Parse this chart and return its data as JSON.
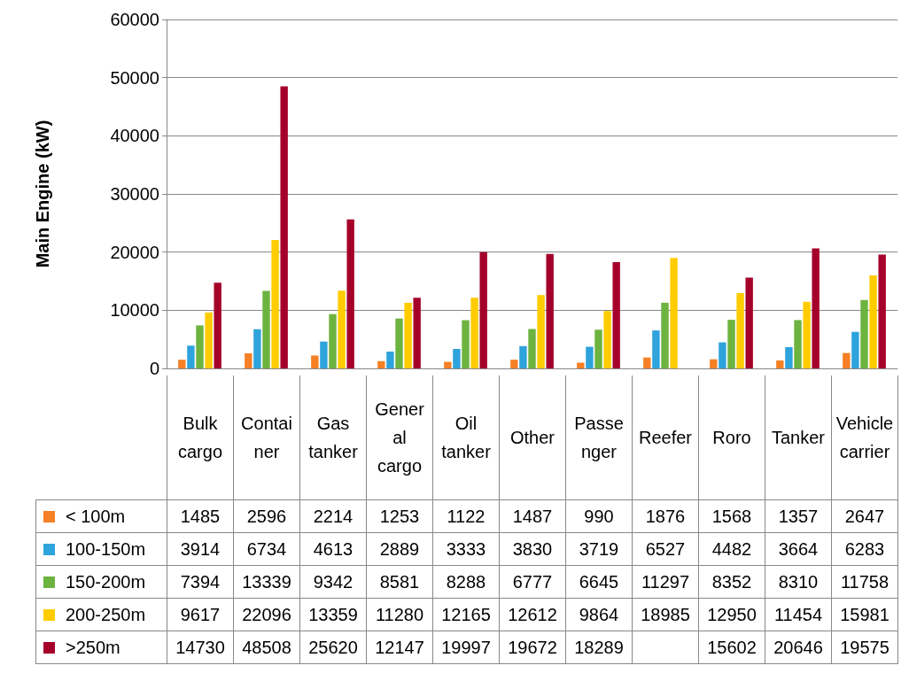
{
  "chart_data": {
    "type": "bar",
    "ylabel": "Main Engine (kW)",
    "categories": [
      "Bulk cargo",
      "Container",
      "Gas tanker",
      "General cargo",
      "Oil tanker",
      "Other",
      "Passenger",
      "Reefer",
      "Roro",
      "Tanker",
      "Vehicle carrier"
    ],
    "series": [
      {
        "name": "< 100m",
        "color": "#f58025",
        "values": [
          1485,
          2596,
          2214,
          1253,
          1122,
          1487,
          990,
          1876,
          1568,
          1357,
          2647
        ]
      },
      {
        "name": "100-150m",
        "color": "#2ea3dc",
        "values": [
          3914,
          6734,
          4613,
          2889,
          3333,
          3830,
          3719,
          6527,
          4482,
          3664,
          6283
        ]
      },
      {
        "name": "150-200m",
        "color": "#6db33f",
        "values": [
          7394,
          13339,
          9342,
          8581,
          8288,
          6777,
          6645,
          11297,
          8352,
          8310,
          11758
        ]
      },
      {
        "name": "200-250m",
        "color": "#ffcc00",
        "values": [
          9617,
          22096,
          13359,
          11280,
          12165,
          12612,
          9864,
          18985,
          12950,
          11454,
          15981
        ]
      },
      {
        "name": ">250m",
        "color": "#a5002a",
        "values": [
          14730,
          48508,
          25620,
          12147,
          19997,
          19672,
          18289,
          null,
          15602,
          20646,
          19575
        ]
      }
    ],
    "ylim": [
      0,
      60000
    ],
    "yticks": [
      0,
      10000,
      20000,
      30000,
      40000,
      50000,
      60000
    ],
    "grid": "y",
    "data_labels": true,
    "legend": "bottom left"
  }
}
